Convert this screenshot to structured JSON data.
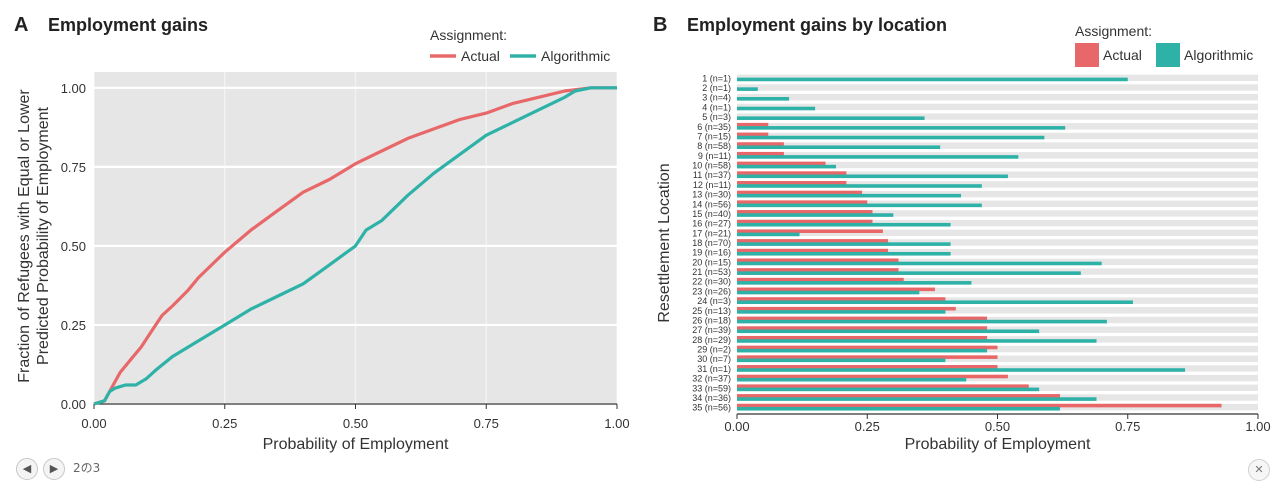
{
  "colors": {
    "actual": "#e8686a",
    "algorithmic": "#2eb2a8",
    "panel_bg": "#e6e6e6",
    "grid": "#ffffff"
  },
  "nav": {
    "prev_icon": "arrow-left-icon",
    "next_icon": "arrow-right-icon",
    "page_indicator": "2の3",
    "close_icon": "close-icon",
    "close_glyph": "✕"
  },
  "chart_data": [
    {
      "type": "line",
      "panel_letter": "A",
      "title": "Employment gains",
      "xlabel": "Probability of Employment",
      "ylabel_lines": [
        "Fraction of Refugees with Equal or Lower",
        "Predicted Probability of Employment"
      ],
      "xlim": [
        0,
        1
      ],
      "ylim": [
        0,
        1.05
      ],
      "xticks": [
        "0.00",
        "0.25",
        "0.50",
        "0.75",
        "1.00"
      ],
      "yticks": [
        "0.00",
        "0.25",
        "0.50",
        "0.75",
        "1.00"
      ],
      "grid": true,
      "legend": {
        "title": "Assignment:",
        "placement": "top-right"
      },
      "series": [
        {
          "name": "Actual",
          "x": [
            0,
            0.02,
            0.03,
            0.04,
            0.05,
            0.07,
            0.09,
            0.11,
            0.13,
            0.15,
            0.18,
            0.2,
            0.25,
            0.3,
            0.35,
            0.4,
            0.45,
            0.5,
            0.55,
            0.6,
            0.65,
            0.7,
            0.75,
            0.8,
            0.85,
            0.9,
            0.95,
            1.0
          ],
          "y": [
            0,
            0.01,
            0.04,
            0.07,
            0.1,
            0.14,
            0.18,
            0.23,
            0.28,
            0.31,
            0.36,
            0.4,
            0.48,
            0.55,
            0.61,
            0.67,
            0.71,
            0.76,
            0.8,
            0.84,
            0.87,
            0.9,
            0.92,
            0.95,
            0.97,
            0.99,
            1.0,
            1.0
          ]
        },
        {
          "name": "Algorithmic",
          "x": [
            0,
            0.02,
            0.03,
            0.04,
            0.06,
            0.08,
            0.1,
            0.12,
            0.15,
            0.2,
            0.25,
            0.3,
            0.35,
            0.4,
            0.45,
            0.5,
            0.52,
            0.55,
            0.6,
            0.65,
            0.7,
            0.75,
            0.8,
            0.85,
            0.9,
            0.92,
            0.95,
            1.0
          ],
          "y": [
            0,
            0.01,
            0.04,
            0.05,
            0.06,
            0.06,
            0.08,
            0.11,
            0.15,
            0.2,
            0.25,
            0.3,
            0.34,
            0.38,
            0.44,
            0.5,
            0.55,
            0.58,
            0.66,
            0.73,
            0.79,
            0.85,
            0.89,
            0.93,
            0.97,
            0.99,
            1.0,
            1.0
          ]
        }
      ]
    },
    {
      "type": "bar",
      "orientation": "horizontal",
      "panel_letter": "B",
      "title": "Employment gains by location",
      "xlabel": "Probability of Employment",
      "ylabel": "Resettlement Location",
      "xlim": [
        0,
        1
      ],
      "xticks": [
        "0.00",
        "0.25",
        "0.50",
        "0.75",
        "1.00"
      ],
      "grid": true,
      "legend": {
        "title": "Assignment:",
        "placement": "top-right"
      },
      "categories": [
        "1 (n=1)",
        "2 (n=1)",
        "3 (n=4)",
        "4 (n=1)",
        "5 (n=3)",
        "6 (n=35)",
        "7 (n=15)",
        "8 (n=58)",
        "9 (n=11)",
        "10 (n=58)",
        "11 (n=37)",
        "12 (n=11)",
        "13 (n=30)",
        "14 (n=56)",
        "15 (n=40)",
        "16 (n=27)",
        "17 (n=21)",
        "18 (n=70)",
        "19 (n=16)",
        "20 (n=15)",
        "21 (n=53)",
        "22 (n=30)",
        "23 (n=26)",
        "24 (n=3)",
        "25 (n=13)",
        "26 (n=18)",
        "27 (n=39)",
        "28 (n=29)",
        "29 (n=2)",
        "30 (n=7)",
        "31 (n=1)",
        "32 (n=37)",
        "33 (n=59)",
        "34 (n=36)",
        "35 (n=56)"
      ],
      "series": [
        {
          "name": "Actual",
          "values": [
            0.0,
            0.0,
            0.0,
            0.0,
            0.0,
            0.06,
            0.06,
            0.09,
            0.09,
            0.17,
            0.21,
            0.21,
            0.24,
            0.25,
            0.26,
            0.26,
            0.28,
            0.29,
            0.29,
            0.31,
            0.31,
            0.32,
            0.38,
            0.4,
            0.42,
            0.48,
            0.48,
            0.48,
            0.5,
            0.5,
            0.5,
            0.52,
            0.56,
            0.62,
            0.93
          ]
        },
        {
          "name": "Algorithmic",
          "values": [
            0.75,
            0.04,
            0.1,
            0.15,
            0.36,
            0.63,
            0.59,
            0.39,
            0.54,
            0.19,
            0.52,
            0.47,
            0.43,
            0.47,
            0.3,
            0.41,
            0.12,
            0.41,
            0.41,
            0.7,
            0.66,
            0.45,
            0.35,
            0.76,
            0.4,
            0.71,
            0.58,
            0.69,
            0.48,
            0.4,
            0.86,
            0.44,
            0.58,
            0.69,
            0.62
          ]
        }
      ]
    }
  ]
}
